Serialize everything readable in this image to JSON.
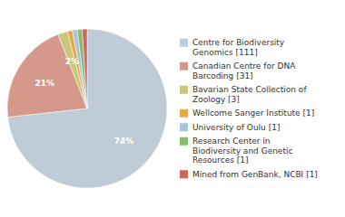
{
  "chart_data": {
    "type": "pie",
    "categories": [
      "Centre for Biodiversity\nGenomics [111]",
      "Canadian Centre for DNA\nBarcoding [31]",
      "Bavarian State Collection of\nZoology [3]",
      "Wellcome Sanger Institute [1]",
      "University of Oulu [1]",
      "Research Center in\nBiodiversity and Genetic\nResources [1]",
      "Mined from GenBank, NCBI [1]"
    ],
    "values": [
      74,
      21,
      2,
      1,
      1,
      1,
      1
    ],
    "value_labels": [
      "74%",
      "21%",
      "2%",
      null,
      null,
      null,
      null
    ],
    "colors": [
      "#bfccd8",
      "#d4998a",
      "#c8c87a",
      "#e8a84a",
      "#a8c4d8",
      "#8ab870",
      "#cc6655"
    ],
    "data_labels": true,
    "legend": "right"
  }
}
